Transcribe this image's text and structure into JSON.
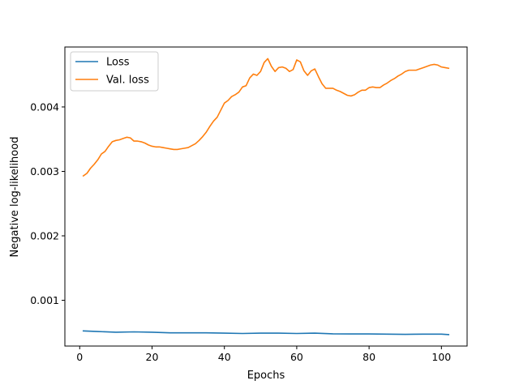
{
  "chart_data": {
    "type": "line",
    "xlabel": "Epochs",
    "ylabel": "Negative log-likelihood",
    "xlim": [
      -4.1,
      107.1
    ],
    "ylim": [
      0.00029,
      0.00493
    ],
    "xticks": [
      0,
      20,
      40,
      60,
      80,
      100
    ],
    "yticks": [
      0.001,
      0.002,
      0.003,
      0.004
    ],
    "ytick_labels": [
      "0.001",
      "0.002",
      "0.003",
      "0.004"
    ],
    "grid": false,
    "legend_position": "upper-left",
    "series": [
      {
        "name": "Loss",
        "color": "#1f77b4",
        "x": [
          1,
          5,
          10,
          15,
          20,
          25,
          30,
          35,
          40,
          45,
          50,
          55,
          60,
          65,
          70,
          75,
          80,
          85,
          90,
          95,
          100,
          102
        ],
        "y": [
          0.000525,
          0.000515,
          0.000505,
          0.00051,
          0.000505,
          0.000495,
          0.000495,
          0.000495,
          0.00049,
          0.000485,
          0.00049,
          0.00049,
          0.000485,
          0.00049,
          0.00048,
          0.000478,
          0.000478,
          0.000475,
          0.000472,
          0.000475,
          0.000475,
          0.000468
        ]
      },
      {
        "name": "Val. loss",
        "color": "#ff7f0e",
        "x": [
          1,
          2,
          3,
          4,
          5,
          6,
          7,
          8,
          9,
          10,
          11,
          12,
          13,
          14,
          15,
          16,
          17,
          18,
          19,
          20,
          21,
          22,
          23,
          24,
          25,
          26,
          27,
          28,
          29,
          30,
          31,
          32,
          33,
          34,
          35,
          36,
          37,
          38,
          39,
          40,
          41,
          42,
          43,
          44,
          45,
          46,
          47,
          48,
          49,
          50,
          51,
          52,
          53,
          54,
          55,
          56,
          57,
          58,
          59,
          60,
          61,
          62,
          63,
          64,
          65,
          66,
          67,
          68,
          69,
          70,
          71,
          72,
          73,
          74,
          75,
          76,
          77,
          78,
          79,
          80,
          81,
          82,
          83,
          84,
          85,
          86,
          87,
          88,
          89,
          90,
          91,
          92,
          93,
          94,
          95,
          96,
          97,
          98,
          99,
          100,
          101,
          102
        ],
        "y": [
          0.00293,
          0.00297,
          0.00305,
          0.00311,
          0.00318,
          0.00327,
          0.00331,
          0.00339,
          0.00346,
          0.00348,
          0.00349,
          0.00351,
          0.00353,
          0.00352,
          0.00347,
          0.00347,
          0.00346,
          0.00344,
          0.00341,
          0.00339,
          0.00338,
          0.00338,
          0.00337,
          0.00336,
          0.00335,
          0.00334,
          0.00334,
          0.00335,
          0.00336,
          0.00337,
          0.0034,
          0.00343,
          0.00348,
          0.00354,
          0.00361,
          0.0037,
          0.00378,
          0.00384,
          0.00395,
          0.00406,
          0.0041,
          0.00416,
          0.00419,
          0.00423,
          0.00431,
          0.00433,
          0.00445,
          0.00451,
          0.00449,
          0.00455,
          0.00469,
          0.00475,
          0.00463,
          0.00455,
          0.00461,
          0.00462,
          0.0046,
          0.00455,
          0.00458,
          0.00473,
          0.0047,
          0.00456,
          0.00449,
          0.00456,
          0.00459,
          0.00447,
          0.00436,
          0.00429,
          0.00429,
          0.00429,
          0.00426,
          0.00424,
          0.00421,
          0.00418,
          0.00417,
          0.00419,
          0.00423,
          0.00426,
          0.00426,
          0.0043,
          0.00431,
          0.0043,
          0.0043,
          0.00434,
          0.00437,
          0.00441,
          0.00444,
          0.00448,
          0.00451,
          0.00455,
          0.00457,
          0.00457,
          0.00457,
          0.00459,
          0.00461,
          0.00463,
          0.00465,
          0.00466,
          0.00465,
          0.00462,
          0.00461,
          0.0046
        ]
      }
    ]
  }
}
